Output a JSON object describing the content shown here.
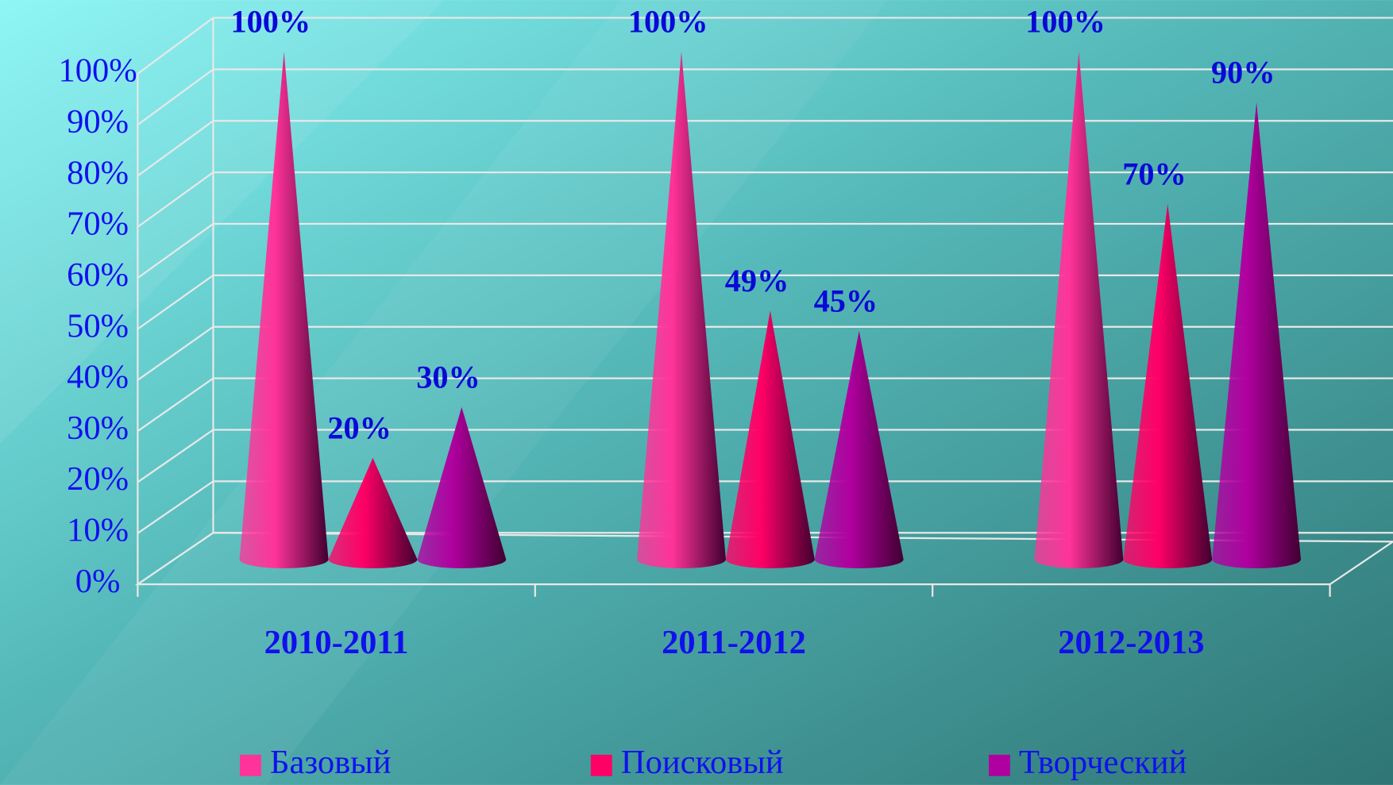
{
  "chart_data": {
    "type": "cone",
    "categories": [
      "2010-2011",
      "2011-2012",
      "2012-2013"
    ],
    "series": [
      {
        "name": "Базовый",
        "color": "#ff3399",
        "values": [
          100,
          100,
          100
        ],
        "value_labels": [
          "100%",
          "100%",
          "100%"
        ]
      },
      {
        "name": "Поисковый",
        "color": "#ff0066",
        "values": [
          20,
          49,
          70
        ],
        "value_labels": [
          "20%",
          "49%",
          "70%"
        ]
      },
      {
        "name": "Творческий",
        "color": "#b0009f",
        "values": [
          30,
          45,
          90
        ],
        "value_labels": [
          "30%",
          "45%",
          "90%"
        ]
      }
    ],
    "ylim": [
      0,
      100
    ],
    "yticks": [
      {
        "value": 0,
        "label": "0%"
      },
      {
        "value": 10,
        "label": "10%"
      },
      {
        "value": 20,
        "label": "20%"
      },
      {
        "value": 30,
        "label": "30%"
      },
      {
        "value": 40,
        "label": "40%"
      },
      {
        "value": 50,
        "label": "50%"
      },
      {
        "value": 60,
        "label": "60%"
      },
      {
        "value": 70,
        "label": "70%"
      },
      {
        "value": 80,
        "label": "80%"
      },
      {
        "value": 90,
        "label": "90%"
      },
      {
        "value": 100,
        "label": "100%"
      }
    ],
    "grid": true,
    "legend": "bottom"
  }
}
